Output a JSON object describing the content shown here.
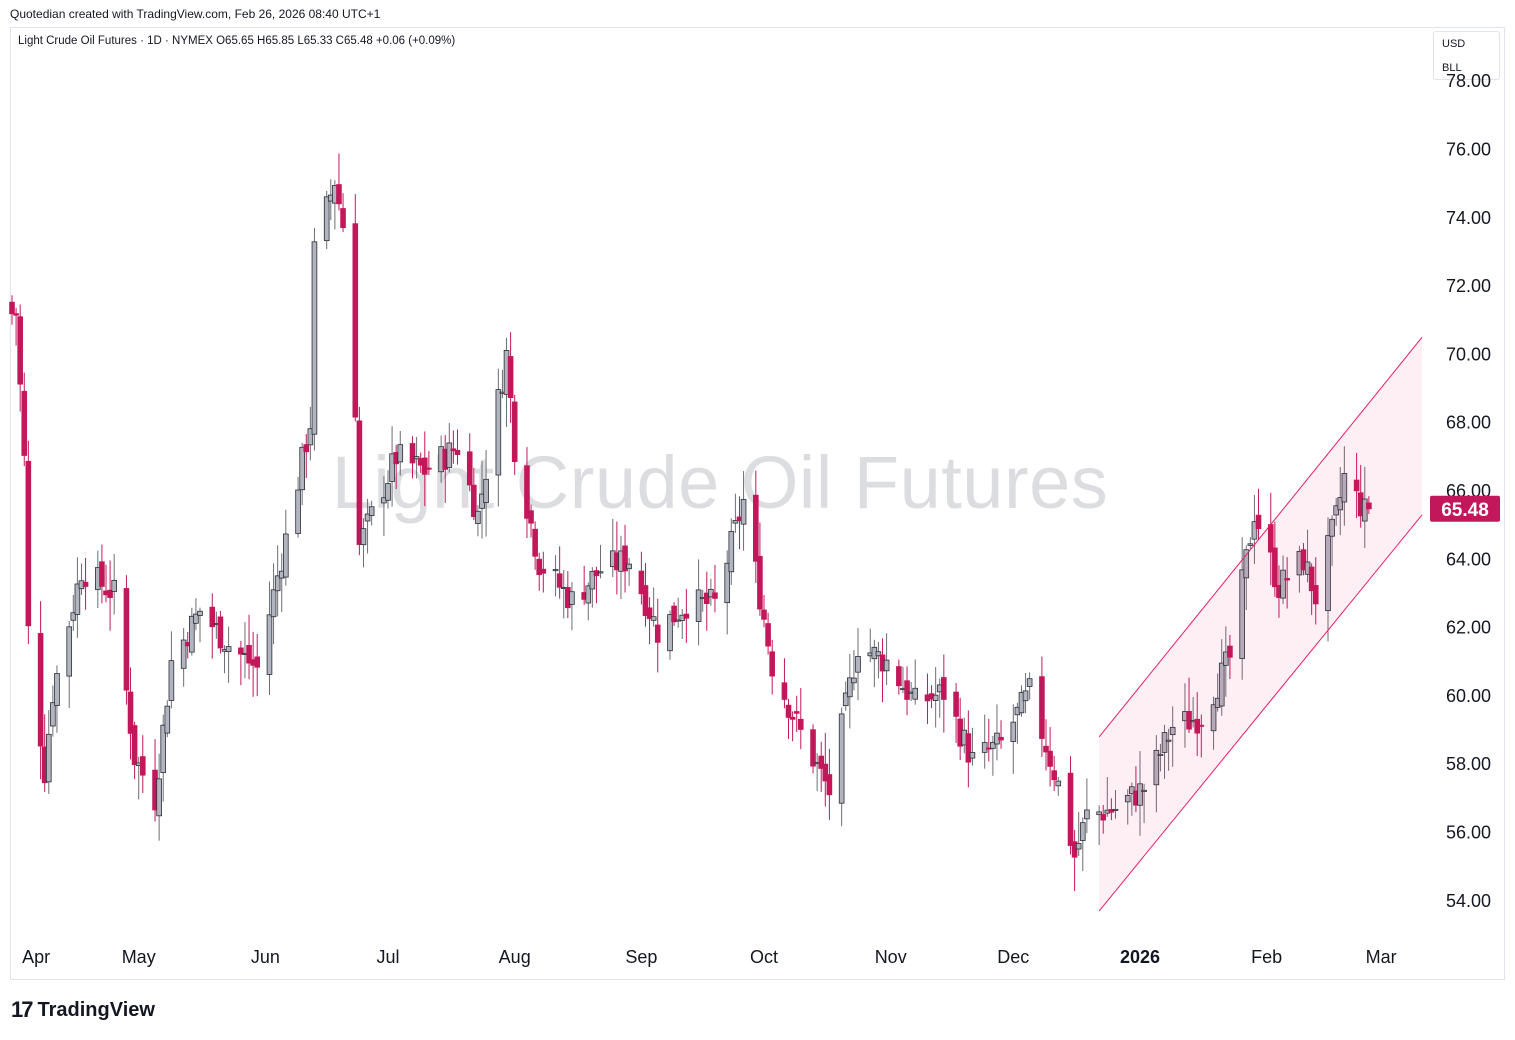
{
  "header": {
    "credit": "Quotedian created with TradingView.com, Feb 26, 2026 08:40 UTC+1",
    "symbol_line": "Light Crude Oil Futures · 1D · NYMEX  O65.65  H65.85  L65.33  C65.48  +0.06 (+0.09%)"
  },
  "unit_box": {
    "currency": "USD",
    "unit": "BLL"
  },
  "watermark": "Light Crude Oil Futures",
  "footer": {
    "logo_mark": "17",
    "logo_text": "TradingView"
  },
  "colors": {
    "up": "#b2b5be",
    "down": "#c2185b",
    "channel": "#e91e63",
    "price_label_bg": "#c2185b"
  },
  "chart_data": {
    "type": "candlestick",
    "title": "Light Crude Oil Futures",
    "interval": "1D",
    "exchange": "NYMEX",
    "last": {
      "open": 65.65,
      "high": 65.85,
      "low": 65.33,
      "close": 65.48,
      "change": "+0.06 (+0.09%)"
    },
    "last_price_label": "65.48",
    "y_ticks": [
      "54.00",
      "56.00",
      "58.00",
      "60.00",
      "62.00",
      "64.00",
      "66.00",
      "68.00",
      "70.00",
      "72.00",
      "74.00",
      "76.00",
      "78.00"
    ],
    "x_ticks": [
      "Apr",
      "May",
      "Jun",
      "Jul",
      "Aug",
      "Sep",
      "Oct",
      "Nov",
      "Dec",
      "2026",
      "Feb",
      "Mar"
    ],
    "x_tick_dates": [
      "2025-04-01",
      "2025-05-01",
      "2025-06-01",
      "2025-07-01",
      "2025-08-01",
      "2025-09-01",
      "2025-10-01",
      "2025-11-01",
      "2025-12-01",
      "2026-01-01",
      "2026-02-01",
      "2026-03-01"
    ],
    "ylim": [
      53.0,
      79.5
    ],
    "xlim": [
      "2025-03-31",
      "2026-03-11"
    ],
    "grid": false,
    "approx_closes": [
      {
        "date": "2025-04-01",
        "close": 71.2
      },
      {
        "date": "2025-04-03",
        "close": 66.9
      },
      {
        "date": "2025-04-04",
        "close": 61.9
      },
      {
        "date": "2025-04-08",
        "close": 57.8
      },
      {
        "date": "2025-04-10",
        "close": 60.1
      },
      {
        "date": "2025-04-17",
        "close": 63.7
      },
      {
        "date": "2025-04-25",
        "close": 63.0
      },
      {
        "date": "2025-04-30",
        "close": 58.2
      },
      {
        "date": "2025-05-05",
        "close": 57.0
      },
      {
        "date": "2025-05-09",
        "close": 61.0
      },
      {
        "date": "2025-05-16",
        "close": 62.5
      },
      {
        "date": "2025-05-23",
        "close": 61.5
      },
      {
        "date": "2025-05-30",
        "close": 60.8
      },
      {
        "date": "2025-06-06",
        "close": 64.6
      },
      {
        "date": "2025-06-12",
        "close": 68.0
      },
      {
        "date": "2025-06-13",
        "close": 73.0
      },
      {
        "date": "2025-06-18",
        "close": 75.1
      },
      {
        "date": "2025-06-20",
        "close": 73.8
      },
      {
        "date": "2025-06-23",
        "close": 68.5
      },
      {
        "date": "2025-06-24",
        "close": 64.4
      },
      {
        "date": "2025-07-03",
        "close": 67.0
      },
      {
        "date": "2025-07-10",
        "close": 66.6
      },
      {
        "date": "2025-07-18",
        "close": 67.3
      },
      {
        "date": "2025-07-23",
        "close": 65.3
      },
      {
        "date": "2025-07-30",
        "close": 70.0
      },
      {
        "date": "2025-08-01",
        "close": 67.3
      },
      {
        "date": "2025-08-07",
        "close": 63.9
      },
      {
        "date": "2025-08-15",
        "close": 62.8
      },
      {
        "date": "2025-08-22",
        "close": 63.7
      },
      {
        "date": "2025-08-29",
        "close": 64.0
      },
      {
        "date": "2025-09-05",
        "close": 61.9
      },
      {
        "date": "2025-09-12",
        "close": 62.7
      },
      {
        "date": "2025-09-19",
        "close": 62.7
      },
      {
        "date": "2025-09-26",
        "close": 65.7
      },
      {
        "date": "2025-10-03",
        "close": 60.9
      },
      {
        "date": "2025-10-10",
        "close": 58.9
      },
      {
        "date": "2025-10-17",
        "close": 57.2
      },
      {
        "date": "2025-10-24",
        "close": 61.5
      },
      {
        "date": "2025-10-31",
        "close": 61.0
      },
      {
        "date": "2025-11-07",
        "close": 59.8
      },
      {
        "date": "2025-11-14",
        "close": 60.1
      },
      {
        "date": "2025-11-21",
        "close": 58.1
      },
      {
        "date": "2025-11-28",
        "close": 58.6
      },
      {
        "date": "2025-12-05",
        "close": 60.1
      },
      {
        "date": "2025-12-12",
        "close": 57.4
      },
      {
        "date": "2025-12-16",
        "close": 55.3
      },
      {
        "date": "2025-12-19",
        "close": 56.5
      },
      {
        "date": "2025-12-26",
        "close": 56.7
      },
      {
        "date": "2026-01-02",
        "close": 57.3
      },
      {
        "date": "2026-01-09",
        "close": 59.1
      },
      {
        "date": "2026-01-16",
        "close": 59.4
      },
      {
        "date": "2026-01-23",
        "close": 61.1
      },
      {
        "date": "2026-01-29",
        "close": 65.4
      },
      {
        "date": "2026-02-04",
        "close": 63.2
      },
      {
        "date": "2026-02-10",
        "close": 64.0
      },
      {
        "date": "2026-02-13",
        "close": 62.9
      },
      {
        "date": "2026-02-18",
        "close": 65.2
      },
      {
        "date": "2026-02-20",
        "close": 66.4
      },
      {
        "date": "2026-02-25",
        "close": 65.4
      },
      {
        "date": "2026-02-26",
        "close": 65.48
      }
    ],
    "channel": {
      "upper": [
        {
          "date": "2025-12-22",
          "value": 58.8
        },
        {
          "date": "2026-03-11",
          "value": 70.5
        }
      ],
      "lower": [
        {
          "date": "2025-12-22",
          "value": 53.7
        },
        {
          "date": "2026-03-11",
          "value": 65.3
        }
      ]
    }
  }
}
